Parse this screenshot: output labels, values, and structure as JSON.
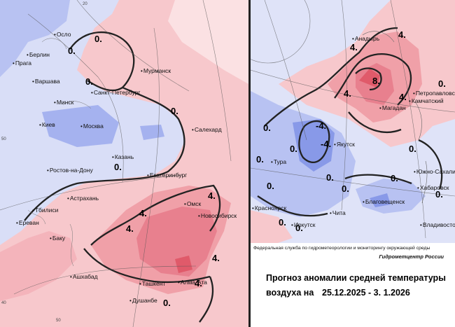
{
  "left_map": {
    "cities": [
      {
        "name": "Осло"
      },
      {
        "name": "Берлин"
      },
      {
        "name": "Прага"
      },
      {
        "name": "Варшава"
      },
      {
        "name": "Мурманск"
      },
      {
        "name": "Санкт-Петербург"
      },
      {
        "name": "Минск"
      },
      {
        "name": "Киев"
      },
      {
        "name": "Москва"
      },
      {
        "name": "Салехард"
      },
      {
        "name": "Казань"
      },
      {
        "name": "Ростов-на-Дону"
      },
      {
        "name": "Екатеринбург"
      },
      {
        "name": "Астрахань"
      },
      {
        "name": "Омск"
      },
      {
        "name": "Тбилиси"
      },
      {
        "name": "Новосибирск"
      },
      {
        "name": "Ереван"
      },
      {
        "name": "Баку"
      },
      {
        "name": "Ашхабад"
      },
      {
        "name": "Ташкент"
      },
      {
        "name": "Алма-Ата"
      },
      {
        "name": "Душанбе"
      }
    ],
    "isoline_labels": [
      "0.",
      "0.",
      "0.",
      "0.",
      "0.",
      "4.",
      "4.",
      "4.",
      "4.",
      "4.",
      "0."
    ],
    "coord_labels": [
      "20",
      "50",
      "50",
      "40"
    ]
  },
  "right_map": {
    "cities": [
      {
        "name": "Анадырь"
      },
      {
        "name": "Петропавловск"
      },
      {
        "name": "Камчатский"
      },
      {
        "name": "Магадан"
      },
      {
        "name": "Якутск"
      },
      {
        "name": "Тура"
      },
      {
        "name": "Южно-Сахалинск"
      },
      {
        "name": "Хабаровск"
      },
      {
        "name": "Красноярск"
      },
      {
        "name": "Благовещенск"
      },
      {
        "name": "Иркутск"
      },
      {
        "name": "Чита"
      },
      {
        "name": "Владивосток"
      }
    ],
    "isoline_labels": [
      "0.",
      "0.",
      "4.",
      "4.",
      "4.",
      "4.",
      "8.",
      "0.",
      "-4.",
      "-4.",
      "0.",
      "0.",
      "0.",
      "0.",
      "0.",
      "0.",
      "0.",
      "0.",
      "0."
    ]
  },
  "footer": {
    "agency": "Федеральная служба по гидрометеорологии и мониторингу окружающей среды",
    "center": "Гидрометцентр России",
    "title_line1": "Прогноз аномалии средней температуры",
    "title_line2": "воздуха на",
    "dates": "25.12.2025 - 3. 1.2026"
  },
  "legend_colors": {
    "cold_strong": "#8899e8",
    "cold": "#b8c2f2",
    "neutral_cold": "#dde2f8",
    "warm": "#f7c8cc",
    "warm_mid": "#f0a0a8",
    "warm_strong": "#e8707e",
    "warm_extreme": "#e05a6a"
  }
}
